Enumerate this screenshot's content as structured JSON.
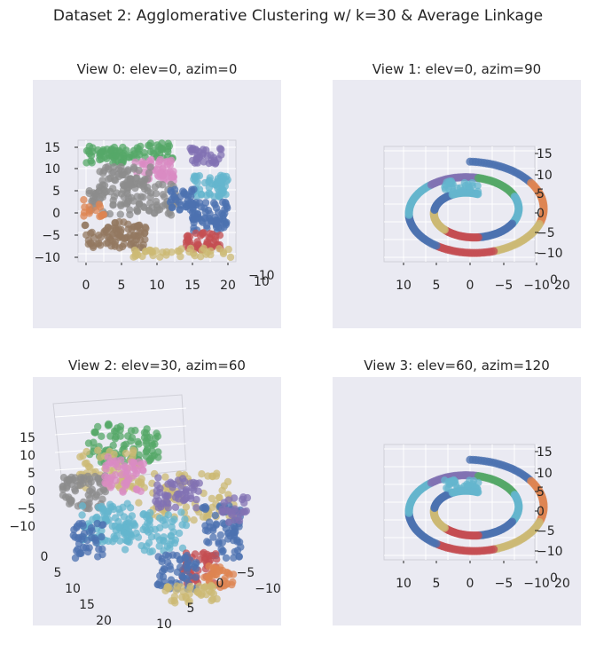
{
  "figure": {
    "title": "Dataset 2: Agglomerative Clustering w/ k=30 & Average Linkage"
  },
  "chart_data": [
    {
      "type": "scatter",
      "title": "View 0: elev=0, azim=0",
      "elev": 0,
      "azim": 0,
      "x_ticks": [
        "0",
        "5",
        "10",
        "15",
        "20"
      ],
      "y_ticks": [
        "15",
        "10",
        "5",
        "0",
        "−5",
        "−10"
      ],
      "z_ticks": [
        "−10",
        "10"
      ],
      "grid": true
    },
    {
      "type": "scatter",
      "title": "View 1: elev=0, azim=90",
      "elev": 0,
      "azim": 90,
      "x_ticks": [
        "10",
        "5",
        "0",
        "−5",
        "−10"
      ],
      "y_ticks": [
        "15",
        "10",
        "5",
        "0",
        "−5",
        "−10"
      ],
      "z_ticks": [
        "0",
        "20"
      ],
      "grid": true
    },
    {
      "type": "scatter",
      "title": "View 2: elev=30, azim=60",
      "elev": 30,
      "azim": 60,
      "x_ticks": [
        "0",
        "5",
        "10",
        "15",
        "20"
      ],
      "y_ticks": [
        "10",
        "5",
        "0",
        "−5",
        "−10"
      ],
      "z_ticks": [
        "15",
        "10",
        "5",
        "0",
        "−5",
        "−10"
      ],
      "grid": true
    },
    {
      "type": "scatter",
      "title": "View 3: elev=60, azim=120",
      "elev": 60,
      "azim": 120,
      "x_ticks": [
        "10",
        "5",
        "0",
        "−5",
        "−10"
      ],
      "y_ticks": [
        "15",
        "10",
        "5",
        "0",
        "−5",
        "−10"
      ],
      "z_ticks": [
        "0",
        "20"
      ],
      "grid": true
    }
  ],
  "palette": {
    "blue": "#4c72b0",
    "orange": "#dd8452",
    "green": "#55a868",
    "red": "#c44e52",
    "purple": "#8172b3",
    "brown": "#937860",
    "pink": "#da8bc3",
    "gray": "#8c8c8c",
    "olive": "#ccb974",
    "cyan": "#64b5cd"
  }
}
